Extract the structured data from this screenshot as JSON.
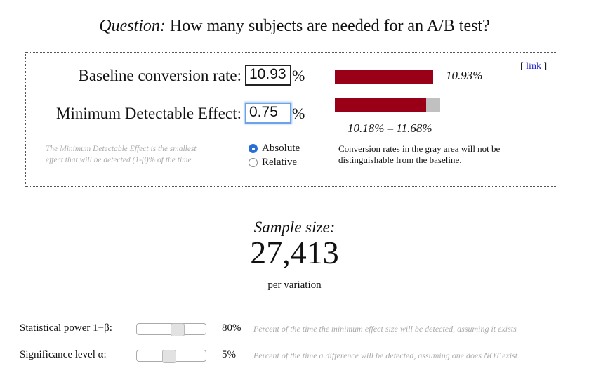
{
  "question": {
    "prefix": "Question:",
    "text": " How many subjects are needed for an A/B test?"
  },
  "inputs": {
    "baseline_label": "Baseline conversion rate:",
    "baseline_value": "10.93",
    "baseline_unit": "%",
    "mde_label": "Minimum Detectable Effect:",
    "mde_value": "0.75",
    "mde_unit": "%",
    "mde_hint_line1": "The Minimum Detectable Effect is the smallest",
    "mde_hint_line2": "effect that will be detected (1-β)% of the time."
  },
  "mode": {
    "options": [
      "Absolute",
      "Relative"
    ],
    "selected": "Absolute"
  },
  "visual": {
    "baseline_bar_label": "10.93%",
    "range_label": "10.18% – 11.68%",
    "note_line1": "Conversion rates in the gray area will not be",
    "note_line2": "distinguishable from the baseline.",
    "link_open": "[ ",
    "link_text": "link",
    "link_close": " ]",
    "bar_color": "#990017",
    "gray_color": "#c0c0c0",
    "baseline_fraction": 1.0,
    "mde_low_fraction": 0.932,
    "mde_high_fraction": 1.0686
  },
  "result": {
    "title": "Sample size:",
    "value": "27,413",
    "sub": "per variation"
  },
  "params": {
    "power_label": "Statistical power 1−β:",
    "power_value": "80%",
    "power_fraction": 0.6,
    "power_desc": "Percent of the time the minimum effect size will be detected, assuming it exists",
    "sig_label": "Significance level α:",
    "sig_value": "5%",
    "sig_fraction": 0.45,
    "sig_desc": "Percent of the time a difference will be detected, assuming one does NOT exist"
  }
}
